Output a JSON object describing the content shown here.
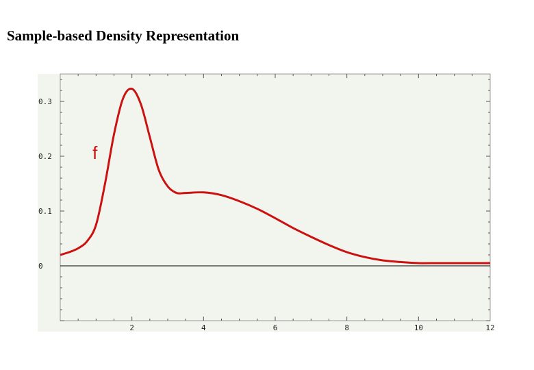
{
  "page": {
    "title": "Sample-based Density Representation"
  },
  "colors": {
    "plot_background": "#f2f5ee",
    "curve": "#cc1111",
    "axis": "#000000",
    "frame_ticks": "#555555"
  },
  "chart_data": {
    "type": "line",
    "title": "Sample-based Density Representation",
    "xlabel": "",
    "ylabel": "",
    "xlim": [
      0,
      12
    ],
    "ylim": [
      -0.1,
      0.35
    ],
    "grid": false,
    "x_major_ticks": [
      2,
      4,
      6,
      8,
      10,
      12
    ],
    "x_minor_step": 0.5,
    "y_major_ticks": [
      0,
      0.1,
      0.2,
      0.3
    ],
    "y_minor_step": 0.02,
    "x_tick_labels": [
      "2",
      "4",
      "6",
      "8",
      "10",
      "12"
    ],
    "y_tick_labels": [
      "0",
      "0.1",
      "0.2",
      "0.3"
    ],
    "series": [
      {
        "name": "f",
        "annotation": "f",
        "color": "#cc1111",
        "x": [
          0,
          0.25,
          0.5,
          0.75,
          1.0,
          1.25,
          1.5,
          1.75,
          2.0,
          2.25,
          2.5,
          2.75,
          3.0,
          3.25,
          3.5,
          4.0,
          4.5,
          5.0,
          5.5,
          6.0,
          6.5,
          7.0,
          7.5,
          8.0,
          8.5,
          9.0,
          9.5,
          10.0,
          10.5,
          11.0,
          11.5,
          12.0
        ],
        "y": [
          0.02,
          0.025,
          0.032,
          0.045,
          0.075,
          0.15,
          0.24,
          0.305,
          0.323,
          0.295,
          0.235,
          0.175,
          0.145,
          0.133,
          0.133,
          0.134,
          0.129,
          0.118,
          0.104,
          0.087,
          0.069,
          0.053,
          0.038,
          0.025,
          0.016,
          0.01,
          0.007,
          0.005,
          0.005,
          0.005,
          0.005,
          0.005
        ]
      }
    ]
  }
}
